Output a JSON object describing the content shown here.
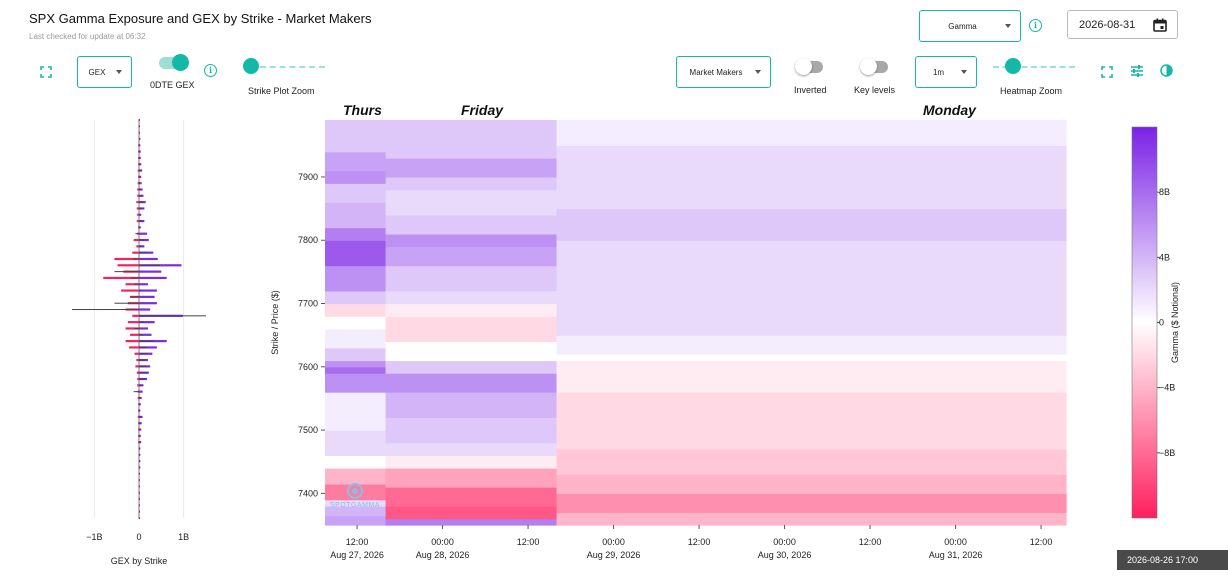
{
  "header": {
    "title": "SPX Gamma Exposure and GEX by Strike - Market Makers",
    "subtitle": "Last checked for update at 06:32"
  },
  "controls": {
    "gex_select": "GEX",
    "odte_label": "0DTE GEX",
    "odte_on": true,
    "strike_zoom_label": "Strike Plot Zoom",
    "strike_zoom_level": 0.1,
    "view_select": "Market Makers",
    "inverted_label": "Inverted",
    "inverted_on": false,
    "key_levels_label": "Key levels",
    "key_levels_on": false,
    "interval_select": "1m",
    "heatmap_zoom_label": "Heatmap Zoom",
    "heatmap_zoom_level": 0.25,
    "greek_select": "Gamma",
    "date_value": "2026-08-31"
  },
  "colors": {
    "accent": "#14b8a6",
    "positive_max": "#7b22e6",
    "negative_max": "#ff1f5e",
    "neutral": "#ffffff",
    "strike_positive": "#7b2be0",
    "strike_negative": "#f0245f",
    "strike_total": "#444444"
  },
  "icons": [
    "expand-icon",
    "info-icon",
    "calendar-icon",
    "tune-icon",
    "contrast-icon"
  ],
  "watermark": "SPOTGAMMA",
  "tooltip": "2026-08-26 17:00",
  "chart_data": [
    {
      "type": "bar",
      "orientation": "horizontal",
      "xlabel": "GEX by Strike",
      "xticks": [
        "−1B",
        "0",
        "1B"
      ],
      "xlim": [
        -1.5,
        1.5
      ],
      "y_range": [
        7350,
        7980
      ],
      "strikes": [
        7980,
        7970,
        7960,
        7950,
        7940,
        7930,
        7920,
        7910,
        7900,
        7890,
        7880,
        7870,
        7860,
        7850,
        7840,
        7830,
        7820,
        7810,
        7800,
        7790,
        7780,
        7770,
        7760,
        7750,
        7740,
        7730,
        7720,
        7710,
        7700,
        7690,
        7680,
        7670,
        7660,
        7650,
        7640,
        7630,
        7620,
        7610,
        7600,
        7590,
        7580,
        7570,
        7560,
        7550,
        7540,
        7530,
        7520,
        7510,
        7500,
        7490,
        7480,
        7470,
        7460,
        7450,
        7440,
        7430,
        7420,
        7410,
        7400,
        7390,
        7380,
        7370,
        7360,
        7350
      ],
      "series": [
        {
          "name": "",
          "values": [
            0.02,
            0.02,
            0.02,
            0.03,
            0.03,
            0.04,
            0.04,
            0.05,
            0.07,
            0.05,
            0.06,
            0.08,
            0.1,
            0.15,
            0.12,
            0.05,
            0.12,
            0.04,
            0.18,
            0.22,
            0.12,
            0.32,
            0.42,
            0.95,
            0.5,
            0.62,
            0.2,
            0.4,
            0.35,
            0.4,
            0.25,
            0.98,
            0.35,
            0.2,
            0.28,
            0.62,
            0.4,
            0.3,
            0.2,
            0.25,
            0.22,
            0.18,
            0.1,
            0.08,
            0.06,
            0.04,
            0.03,
            0.08,
            0.06,
            0.05,
            0.04,
            0.05,
            0.03,
            0.03,
            0.03,
            0.03,
            0.02,
            0.02,
            0.02,
            0.02,
            0.02,
            0.02,
            0.02,
            0.02
          ]
        },
        {
          "name": "",
          "values": [
            -0.01,
            -0.01,
            -0.01,
            -0.01,
            -0.02,
            -0.02,
            -0.02,
            -0.02,
            -0.03,
            -0.02,
            -0.03,
            -0.04,
            -0.04,
            -0.06,
            -0.05,
            -0.04,
            -0.05,
            -0.02,
            -0.04,
            -0.12,
            -0.06,
            -0.15,
            -0.55,
            -0.48,
            -0.35,
            -0.8,
            -0.3,
            -0.4,
            -0.2,
            -0.25,
            -0.3,
            -0.15,
            -0.25,
            -0.3,
            -0.2,
            -0.3,
            -0.22,
            -0.1,
            -0.06,
            -0.08,
            -0.05,
            -0.04,
            -0.04,
            -0.03,
            -0.03,
            -0.02,
            -0.02,
            -0.03,
            -0.02,
            -0.02,
            -0.02,
            -0.02,
            -0.01,
            -0.01,
            -0.01,
            -0.01,
            -0.01,
            -0.01,
            -0.01,
            -0.01,
            -0.01,
            -0.01,
            -0.01,
            -0.01
          ]
        },
        {
          "name": "",
          "values": [
            0.01,
            0.01,
            0.01,
            0.02,
            0.01,
            0.02,
            0.02,
            0.03,
            0.04,
            0.03,
            0.03,
            0.04,
            0.06,
            0.09,
            0.07,
            0.01,
            0.07,
            0.02,
            -0.08,
            0.1,
            0.06,
            0.17,
            -0.13,
            0.47,
            -0.55,
            -0.18,
            -0.1,
            0.05,
            -0.2,
            -0.55,
            -1.5,
            1.5,
            0.1,
            -0.1,
            0.08,
            0.32,
            0.18,
            0.2,
            0.14,
            0.17,
            0.17,
            0.14,
            0.06,
            -0.12,
            0.03,
            0.02,
            0.01,
            0.05,
            0.04,
            0.03,
            0.02,
            0.03,
            0.02,
            0.02,
            0.02,
            0.02,
            0.01,
            0.01,
            0.01,
            0.01,
            0.01,
            0.01,
            0.01,
            0.01
          ]
        }
      ]
    },
    {
      "type": "heatmap",
      "ylabel": "Strike / Price ($)",
      "ylim": [
        7350,
        7990
      ],
      "yticks": [
        "7900",
        "7800",
        "7700",
        "7600",
        "7500",
        "7400"
      ],
      "xlim": [
        "2026-08-27 07:30",
        "2026-08-31 15:30"
      ],
      "xticks": [
        {
          "time": "12:00",
          "date": "Aug 27, 2026"
        },
        {
          "time": "00:00",
          "date": "Aug 28, 2026"
        },
        {
          "time": "12:00",
          "date": ""
        },
        {
          "time": "00:00",
          "date": "Aug 29, 2026"
        },
        {
          "time": "12:00",
          "date": ""
        },
        {
          "time": "00:00",
          "date": "Aug 30, 2026"
        },
        {
          "time": "12:00",
          "date": ""
        },
        {
          "time": "00:00",
          "date": "Aug 31, 2026"
        },
        {
          "time": "12:00",
          "date": ""
        }
      ],
      "day_labels": [
        "Thurs",
        "Friday",
        "Monday"
      ],
      "colorbar_label": "Gamma ($ Notional)",
      "colorbar_ticks": [
        "8B",
        "4B",
        "0",
        "−4B",
        "−8B"
      ],
      "colorbar_range": [
        -12,
        12
      ],
      "segments": [
        {
          "start": "2026-08-27 07:30",
          "end": "2026-08-27 16:00",
          "bands": [
            [
              7350,
              7365,
              5
            ],
            [
              7365,
              7380,
              4
            ],
            [
              7380,
              7390,
              2
            ],
            [
              7390,
              7415,
              -7
            ],
            [
              7415,
              7440,
              -4
            ],
            [
              7440,
              7460,
              0
            ],
            [
              7460,
              7500,
              2
            ],
            [
              7500,
              7560,
              1
            ],
            [
              7560,
              7590,
              6
            ],
            [
              7590,
              7600,
              8
            ],
            [
              7600,
              7610,
              6
            ],
            [
              7610,
              7630,
              3
            ],
            [
              7630,
              7660,
              1
            ],
            [
              7660,
              7680,
              0
            ],
            [
              7680,
              7700,
              -2
            ],
            [
              7700,
              7720,
              3
            ],
            [
              7720,
              7760,
              6
            ],
            [
              7760,
              7800,
              9
            ],
            [
              7800,
              7820,
              7
            ],
            [
              7820,
              7860,
              4
            ],
            [
              7860,
              7890,
              3
            ],
            [
              7890,
              7910,
              6
            ],
            [
              7910,
              7940,
              5
            ],
            [
              7940,
              7990,
              3
            ]
          ]
        },
        {
          "start": "2026-08-27 16:00",
          "end": "2026-08-28 16:00",
          "bands": [
            [
              7350,
              7360,
              7
            ],
            [
              7360,
              7380,
              -9
            ],
            [
              7380,
              7410,
              -8
            ],
            [
              7410,
              7440,
              -5
            ],
            [
              7440,
              7460,
              -1
            ],
            [
              7460,
              7480,
              2
            ],
            [
              7480,
              7520,
              3
            ],
            [
              7520,
              7560,
              4
            ],
            [
              7560,
              7590,
              6
            ],
            [
              7590,
              7610,
              3
            ],
            [
              7610,
              7640,
              0
            ],
            [
              7640,
              7680,
              -2
            ],
            [
              7680,
              7700,
              -1
            ],
            [
              7700,
              7720,
              2
            ],
            [
              7720,
              7760,
              3
            ],
            [
              7760,
              7790,
              5
            ],
            [
              7790,
              7810,
              6
            ],
            [
              7810,
              7840,
              3
            ],
            [
              7840,
              7880,
              2
            ],
            [
              7880,
              7900,
              3
            ],
            [
              7900,
              7930,
              5
            ],
            [
              7930,
              7990,
              3
            ]
          ]
        },
        {
          "start": "2026-08-28 16:00",
          "end": "2026-08-31 15:30",
          "bands": [
            [
              7350,
              7370,
              -4
            ],
            [
              7370,
              7400,
              -6
            ],
            [
              7400,
              7430,
              -4
            ],
            [
              7430,
              7470,
              -3
            ],
            [
              7470,
              7520,
              -2
            ],
            [
              7520,
              7560,
              -2
            ],
            [
              7560,
              7600,
              -1
            ],
            [
              7600,
              7610,
              -1
            ],
            [
              7610,
              7620,
              0
            ],
            [
              7620,
              7650,
              1
            ],
            [
              7650,
              7700,
              2
            ],
            [
              7700,
              7750,
              2
            ],
            [
              7750,
              7800,
              2
            ],
            [
              7800,
              7850,
              3
            ],
            [
              7850,
              7900,
              2
            ],
            [
              7900,
              7950,
              2
            ],
            [
              7950,
              7990,
              1
            ]
          ]
        }
      ]
    }
  ]
}
